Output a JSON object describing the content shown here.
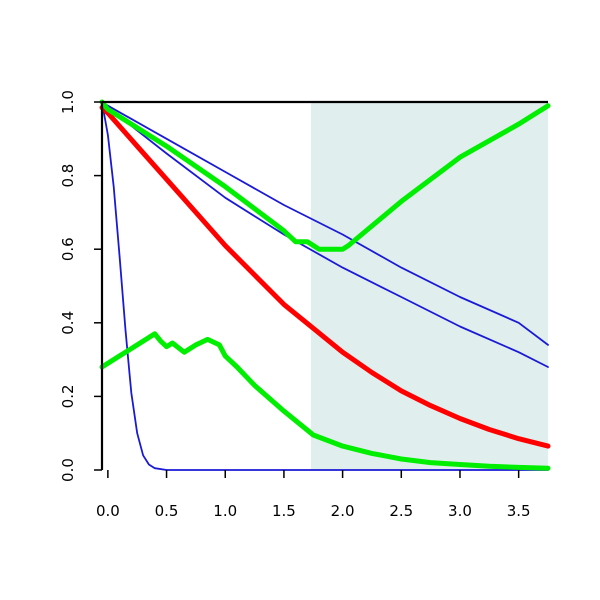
{
  "chart_data": {
    "type": "line",
    "title": "",
    "xlabel": "",
    "ylabel": "",
    "xlim": [
      -0.05,
      3.75
    ],
    "ylim": [
      0,
      1
    ],
    "grid": false,
    "legend": "none",
    "x_ticks": [
      0.0,
      0.5,
      1.0,
      1.5,
      2.0,
      2.5,
      3.0,
      3.5
    ],
    "x_tick_labels": [
      "0.0",
      "0.5",
      "1.0",
      "1.5",
      "2.0",
      "2.5",
      "3.0",
      "3.5"
    ],
    "y_ticks": [
      0.0,
      0.2,
      0.4,
      0.6,
      0.8,
      1.0
    ],
    "y_tick_labels": [
      "0.0",
      "0.2",
      "0.4",
      "0.6",
      "0.8",
      "1.0"
    ],
    "shaded_region": {
      "x_from": 1.73,
      "x_to": 3.75,
      "color": "#e0eeee"
    },
    "series": [
      {
        "color": "#1a1ad6",
        "weight": "thin",
        "x": [
          -0.05,
          0.0,
          0.05,
          0.1,
          0.15,
          0.2,
          0.25,
          0.3,
          0.35,
          0.4,
          0.5,
          0.6,
          1.0,
          2.0,
          3.0,
          3.75
        ],
        "y": [
          1.0,
          0.91,
          0.77,
          0.58,
          0.38,
          0.21,
          0.1,
          0.04,
          0.015,
          0.005,
          0.0,
          0.0,
          0.0,
          0.0,
          0.0,
          0.0
        ]
      },
      {
        "color": "#1a1ad6",
        "weight": "thin",
        "x": [
          -0.05,
          0.0,
          0.5,
          1.0,
          1.5,
          2.0,
          2.5,
          3.0,
          3.5,
          3.75
        ],
        "y": [
          1.0,
          0.985,
          0.86,
          0.74,
          0.64,
          0.55,
          0.47,
          0.39,
          0.32,
          0.28
        ]
      },
      {
        "color": "#1a1ad6",
        "weight": "thin",
        "x": [
          -0.05,
          0.0,
          0.5,
          1.0,
          1.5,
          2.0,
          2.5,
          3.0,
          3.5,
          3.75
        ],
        "y": [
          1.0,
          0.99,
          0.9,
          0.81,
          0.72,
          0.64,
          0.55,
          0.47,
          0.4,
          0.34
        ]
      },
      {
        "color": "#ff0000",
        "weight": "thick",
        "x": [
          -0.05,
          0.0,
          0.25,
          0.5,
          0.75,
          1.0,
          1.25,
          1.5,
          1.75,
          2.0,
          2.25,
          2.5,
          2.75,
          3.0,
          3.25,
          3.5,
          3.75
        ],
        "y": [
          0.985,
          0.97,
          0.88,
          0.79,
          0.7,
          0.61,
          0.53,
          0.45,
          0.385,
          0.32,
          0.265,
          0.215,
          0.175,
          0.14,
          0.11,
          0.085,
          0.065
        ]
      },
      {
        "color": "#00ee00",
        "weight": "thick",
        "x": [
          -0.05,
          0.0,
          0.5,
          1.0,
          1.5,
          1.6,
          1.7,
          1.75,
          1.8,
          1.9,
          2.0,
          2.05,
          2.5,
          3.0,
          3.5,
          3.75
        ],
        "y": [
          1.0,
          0.98,
          0.88,
          0.77,
          0.65,
          0.62,
          0.62,
          0.61,
          0.6,
          0.6,
          0.6,
          0.61,
          0.73,
          0.85,
          0.94,
          0.99
        ]
      },
      {
        "color": "#00ee00",
        "weight": "thick",
        "x": [
          -0.05,
          0.1,
          0.25,
          0.4,
          0.45,
          0.5,
          0.55,
          0.65,
          0.75,
          0.85,
          0.95,
          1.0,
          1.1,
          1.25,
          1.5,
          1.75,
          2.0,
          2.25,
          2.5,
          2.75,
          3.0,
          3.25,
          3.5,
          3.75
        ],
        "y": [
          0.28,
          0.31,
          0.34,
          0.37,
          0.35,
          0.335,
          0.345,
          0.32,
          0.34,
          0.355,
          0.34,
          0.31,
          0.28,
          0.23,
          0.16,
          0.095,
          0.065,
          0.045,
          0.03,
          0.02,
          0.015,
          0.01,
          0.007,
          0.005
        ]
      }
    ]
  }
}
